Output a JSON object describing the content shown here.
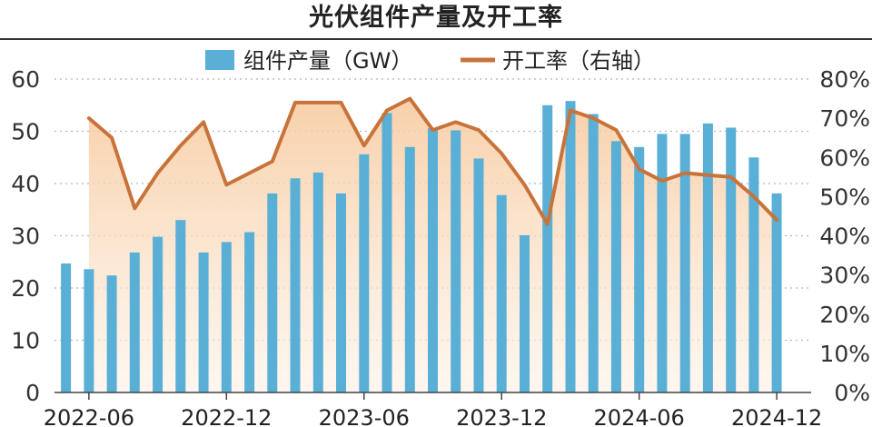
{
  "title": "光伏组件产量及开工率",
  "chart_data": {
    "type": "bar",
    "x": [
      "2022-05",
      "2022-06",
      "2022-07",
      "2022-08",
      "2022-09",
      "2022-10",
      "2022-11",
      "2022-12",
      "2023-01",
      "2023-02",
      "2023-03",
      "2023-04",
      "2023-05",
      "2023-06",
      "2023-07",
      "2023-08",
      "2023-09",
      "2023-10",
      "2023-11",
      "2023-12",
      "2024-01",
      "2024-02",
      "2024-03",
      "2024-04",
      "2024-05",
      "2024-06",
      "2024-07",
      "2024-08",
      "2024-09",
      "2024-10",
      "2024-11",
      "2024-12",
      "2025-01"
    ],
    "x_tick_labels": [
      "2022-06",
      "2022-12",
      "2023-06",
      "2023-12",
      "2024-06",
      "2024-12"
    ],
    "series": [
      {
        "name": "组件产量（GW）",
        "type": "bar",
        "axis": "left",
        "color": "#5AAFD6",
        "values": [
          24.7,
          23.6,
          22.4,
          26.8,
          29.8,
          33.0,
          26.8,
          28.8,
          30.7,
          38.1,
          41.0,
          42.1,
          38.1,
          45.6,
          53.5,
          47.0,
          50.6,
          50.2,
          44.8,
          37.8,
          30.1,
          55.0,
          55.8,
          53.3,
          48.1,
          47.0,
          49.5,
          49.5,
          51.5,
          50.7,
          45.0,
          38.1,
          null
        ]
      },
      {
        "name": "开工率（右轴）",
        "type": "line",
        "axis": "right",
        "color": "#C8733A",
        "values": [
          null,
          70,
          65,
          47,
          56,
          63,
          69,
          53,
          56,
          59,
          74,
          74,
          74,
          63,
          72,
          75,
          67,
          69,
          67,
          61,
          53,
          43,
          72,
          70,
          67,
          57,
          54,
          56,
          55.5,
          55,
          50,
          44,
          null
        ]
      }
    ],
    "ylim_left": [
      0,
      60
    ],
    "ylim_right": [
      0,
      80
    ],
    "y_ticks_left": [
      "0",
      "10",
      "20",
      "30",
      "40",
      "50",
      "60"
    ],
    "y_ticks_right": [
      "0%",
      "10%",
      "20%",
      "30%",
      "40%",
      "50%",
      "60%",
      "70%",
      "80%"
    ],
    "grid": "horizontal dotted",
    "legend": "top-center",
    "area_fill_under_line": true
  }
}
